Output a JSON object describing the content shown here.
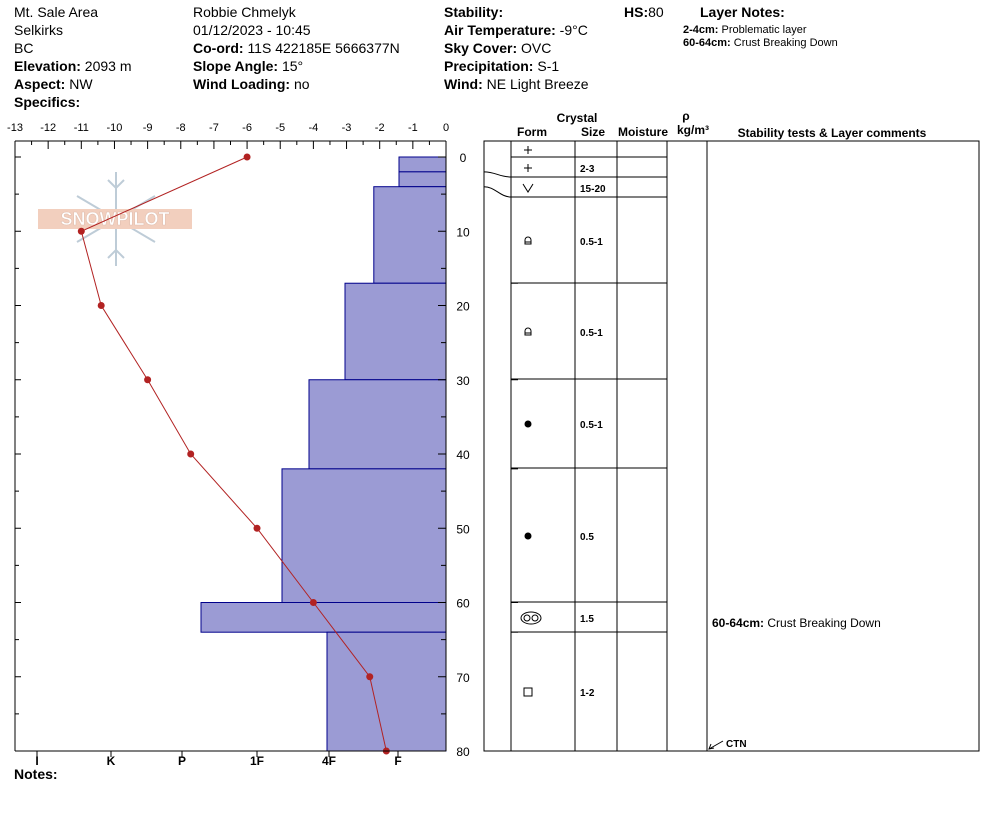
{
  "header": {
    "location": "Mt. Sale Area",
    "range": "Selkirks",
    "state": "BC",
    "elevation_label": "Elevation:",
    "elevation": "2093 m",
    "aspect_label": "Aspect:",
    "aspect": "NW",
    "specifics_label": "Specifics:",
    "observer": "Robbie Chmelyk",
    "datetime": "01/12/2023 - 10:45",
    "coord_label": "Co-ord:",
    "coord": "11S 422185E 5666377N",
    "slope_label": "Slope Angle:",
    "slope": "15°",
    "windload_label": "Wind Loading:",
    "windload": "no",
    "stability_label": "Stability:",
    "airtemp_label": "Air Temperature:",
    "airtemp": "-9°C",
    "sky_label": "Sky Cover:",
    "sky": "OVC",
    "precip_label": "Precipitation:",
    "precip": "S-1",
    "wind_label": "Wind:",
    "wind": "NE Light Breeze",
    "hs_label": "HS:",
    "hs": "80",
    "layer_notes_title": "Layer Notes:",
    "layer_notes": [
      {
        "depth": "2-4cm:",
        "text": "Problematic layer"
      },
      {
        "depth": "60-64cm:",
        "text": "Crust Breaking Down"
      }
    ]
  },
  "table": {
    "crystal_label": "Crystal",
    "form_label": "Form",
    "size_label": "Size",
    "moisture_label": "Moisture",
    "rho_label": "ρ",
    "density_unit": "kg/m³",
    "comments_label": "Stability tests & Layer comments"
  },
  "notes_label": "Notes:",
  "watermark": "SNOWPILOT",
  "chart_data": {
    "type": "snow-profile",
    "depth_axis": {
      "range": [
        0,
        80
      ],
      "ticks": [
        0,
        10,
        20,
        30,
        40,
        50,
        60,
        70,
        80
      ],
      "inverted": true
    },
    "temperature_axis": {
      "range": [
        -13,
        0
      ],
      "ticks": [
        "-13",
        "-12",
        "-11",
        "-10",
        "-9",
        "-8",
        "-7",
        "-6",
        "-5",
        "-4",
        "-3",
        "-2",
        "-1",
        "0"
      ]
    },
    "hardness_axis": {
      "labels": [
        "I",
        "K",
        "P",
        "1F",
        "4F",
        "F"
      ]
    },
    "temperature_profile": [
      {
        "depth": 0,
        "temp": -6.0
      },
      {
        "depth": 10,
        "temp": -11.0
      },
      {
        "depth": 20,
        "temp": -10.4
      },
      {
        "depth": 30,
        "temp": -9.0
      },
      {
        "depth": 40,
        "temp": -7.7
      },
      {
        "depth": 50,
        "temp": -5.7
      },
      {
        "depth": 60,
        "temp": -4.0
      },
      {
        "depth": 70,
        "temp": -2.3
      },
      {
        "depth": 80,
        "temp": -1.8
      }
    ],
    "hardness_layers": [
      {
        "top": 0,
        "bottom": 2,
        "hardness": "F-",
        "width_index": 1.0
      },
      {
        "top": 2,
        "bottom": 4,
        "hardness": "F-",
        "width_index": 1.0
      },
      {
        "top": 4,
        "bottom": 17,
        "hardness": "F+",
        "width_index": 1.7
      },
      {
        "top": 17,
        "bottom": 30,
        "hardness": "4F",
        "width_index": 2.5
      },
      {
        "top": 30,
        "bottom": 42,
        "hardness": "4F+",
        "width_index": 3.5
      },
      {
        "top": 42,
        "bottom": 60,
        "hardness": "1F",
        "width_index": 4.25
      },
      {
        "top": 60,
        "bottom": 64,
        "hardness": "K+",
        "width_index": 6.5
      },
      {
        "top": 64,
        "bottom": 80,
        "hardness": "4F",
        "width_index": 3.0
      }
    ],
    "layers": [
      {
        "top": 0,
        "bottom": 2,
        "form": "+",
        "size": ""
      },
      {
        "top": 2,
        "bottom": 4,
        "form": "+",
        "size": "2-3"
      },
      {
        "top": 4,
        "bottom": 17,
        "form": "V",
        "size": "15-20"
      },
      {
        "top": 17,
        "bottom": 30,
        "form": "round",
        "size": "0.5-1"
      },
      {
        "top": 30,
        "bottom": 42,
        "form": "round",
        "size": "0.5-1"
      },
      {
        "top": 42,
        "bottom": 60,
        "form": "dot",
        "size": "0.5-1"
      },
      {
        "top": 60,
        "bottom": 64,
        "form": "dot",
        "size": "0.5"
      },
      {
        "top": 64,
        "bottom": 80,
        "form": "melt-freeze",
        "size": "1.5"
      },
      {
        "top": 80,
        "bottom": 80,
        "form": "square",
        "size": "1-2"
      }
    ],
    "layer_comments": [
      {
        "depth": 60,
        "label": "60-64cm:",
        "text": "Crust Breaking Down"
      }
    ],
    "stability_tests": [
      {
        "depth": 80,
        "result": "CTN"
      }
    ],
    "colors": {
      "hardness_fill": "#9b9bd4",
      "hardness_stroke": "#00008b",
      "temp_line": "#b22222"
    }
  }
}
